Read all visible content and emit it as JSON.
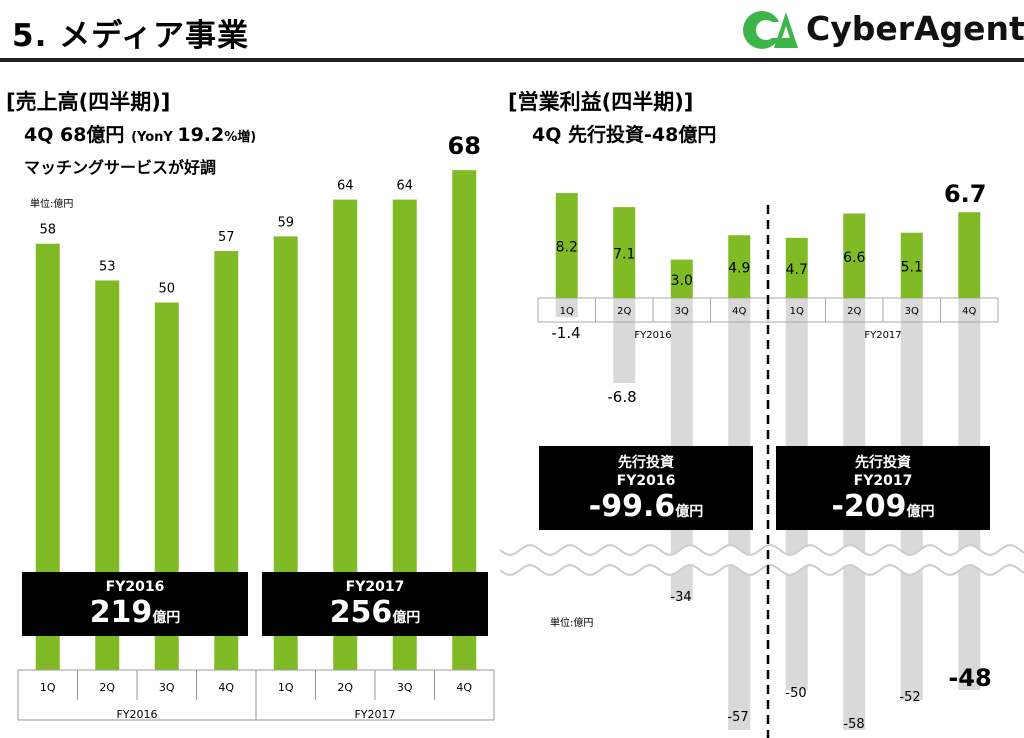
{
  "header": {
    "title": "5. メディア事業",
    "logo_text": "CyberAgent",
    "logo_mark": "CA",
    "logo_reg": "®"
  },
  "colors": {
    "bar_green": "#80bb26",
    "bar_gray": "#d9d9d9",
    "box_bg": "#000000",
    "logo_green": "#3db54a"
  },
  "revenue": {
    "heading": "[売上高(四半期)]",
    "sub_main": "4Q 68億円",
    "sub_small": "(YonY ",
    "sub_pct": "19.2",
    "sub_small2": "%増)",
    "note": "マッチングサービスが好調",
    "unit": "単位:億円",
    "boxes": [
      {
        "label": "FY2016",
        "value": "219",
        "unit": "億円"
      },
      {
        "label": "FY2017",
        "value": "256",
        "unit": "億円"
      }
    ]
  },
  "profit": {
    "heading": "[営業利益(四半期)]",
    "sub": "4Q 先行投資-48億円",
    "unit": "単位:億円",
    "boxes": [
      {
        "label": "先行投資",
        "label2": "FY2016",
        "value": "-99.6",
        "unit": "億円"
      },
      {
        "label": "先行投資",
        "label2": "FY2017",
        "value": "-209",
        "unit": "億円"
      }
    ]
  },
  "chart_data": [
    {
      "type": "bar",
      "title": "売上高(四半期)",
      "ylabel": "億円",
      "categories": [
        "1Q",
        "2Q",
        "3Q",
        "4Q",
        "1Q",
        "2Q",
        "3Q",
        "4Q"
      ],
      "groups": [
        "FY2016",
        "FY2017"
      ],
      "values": [
        58,
        53,
        50,
        57,
        59,
        64,
        64,
        68
      ],
      "labels": [
        "58",
        "53",
        "50",
        "57",
        "59",
        "64",
        "64",
        "68"
      ],
      "ylim": [
        0,
        70
      ]
    },
    {
      "type": "bar",
      "title": "営業利益(四半期)",
      "ylabel": "億円",
      "categories": [
        "1Q",
        "2Q",
        "3Q",
        "4Q",
        "1Q",
        "2Q",
        "3Q",
        "4Q"
      ],
      "groups": [
        "FY2016",
        "FY2017"
      ],
      "series": [
        {
          "name": "営業利益",
          "values": [
            8.2,
            7.1,
            3.0,
            4.9,
            4.7,
            6.6,
            5.1,
            6.7
          ],
          "labels": [
            "8.2",
            "7.1",
            "3.0",
            "4.9",
            "4.7",
            "6.6",
            "5.1",
            "6.7"
          ]
        },
        {
          "name": "先行投資",
          "values": [
            -1.4,
            -6.8,
            -34,
            -57,
            -50,
            -58,
            -52,
            -48
          ],
          "labels": [
            "-1.4",
            "-6.8",
            "-34",
            "-57",
            "-50",
            "-58",
            "-52",
            "-48"
          ]
        }
      ],
      "axis_break": true
    }
  ]
}
